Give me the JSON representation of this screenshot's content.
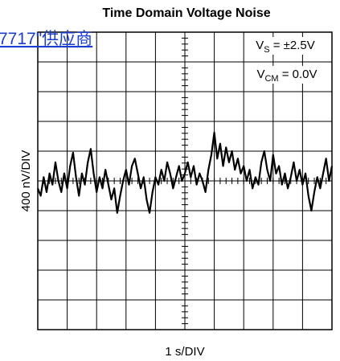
{
  "chart_data": {
    "type": "line",
    "title": "Time Domain Voltage Noise",
    "xlabel": "1 s/DIV",
    "ylabel": "400 nV/DIV",
    "annotations": [
      {
        "base": "V",
        "sub": "S",
        "rest": " = ±2.5V"
      },
      {
        "base": "V",
        "sub": "CM",
        "rest": " = 0.0V"
      }
    ],
    "overlay_link": "7717\"供应商",
    "color": "#000000",
    "grid": true,
    "xlim": [
      0,
      10
    ],
    "xticks": [
      0,
      1,
      2,
      3,
      4,
      5,
      6,
      7,
      8,
      9,
      10
    ],
    "ylim": [
      -2000,
      2000
    ],
    "yticks": [
      -2000,
      -1600,
      -1200,
      -800,
      -400,
      0,
      400,
      800,
      1200,
      1600,
      2000
    ],
    "x": [
      0,
      0.1,
      0.2,
      0.3,
      0.4,
      0.5,
      0.6,
      0.7,
      0.8,
      0.9,
      1,
      1.1,
      1.2,
      1.3,
      1.4,
      1.5,
      1.6,
      1.7,
      1.8,
      1.9,
      2,
      2.1,
      2.2,
      2.3,
      2.4,
      2.5,
      2.6,
      2.7,
      2.8,
      2.9,
      3,
      3.1,
      3.2,
      3.3,
      3.4,
      3.5,
      3.6,
      3.7,
      3.8,
      3.9,
      4,
      4.1,
      4.2,
      4.3,
      4.4,
      4.5,
      4.6,
      4.7,
      4.8,
      4.9,
      5,
      5.1,
      5.2,
      5.3,
      5.4,
      5.5,
      5.6,
      5.7,
      5.8,
      5.9,
      6,
      6.1,
      6.2,
      6.3,
      6.4,
      6.5,
      6.6,
      6.7,
      6.8,
      6.9,
      7,
      7.1,
      7.2,
      7.3,
      7.4,
      7.5,
      7.6,
      7.7,
      7.8,
      7.9,
      8,
      8.1,
      8.2,
      8.3,
      8.4,
      8.5,
      8.6,
      8.7,
      8.8,
      8.9,
      9,
      9.1,
      9.2,
      9.3,
      9.4,
      9.5,
      9.6,
      9.7,
      9.8,
      9.9,
      10
    ],
    "values": [
      -100,
      -200,
      50,
      -150,
      100,
      -50,
      250,
      0,
      -150,
      100,
      -100,
      200,
      380,
      50,
      -200,
      100,
      -50,
      250,
      430,
      100,
      -150,
      50,
      -100,
      150,
      -50,
      -250,
      -100,
      -430,
      -200,
      0,
      150,
      -50,
      200,
      300,
      100,
      -100,
      50,
      -250,
      -430,
      -150,
      50,
      -50,
      150,
      0,
      250,
      100,
      -100,
      50,
      200,
      0,
      100,
      250,
      50,
      200,
      -50,
      100,
      0,
      -150,
      150,
      350,
      650,
      300,
      500,
      200,
      450,
      250,
      400,
      150,
      300,
      100,
      200,
      0,
      150,
      -100,
      50,
      -50,
      250,
      400,
      150,
      0,
      350,
      100,
      200,
      -50,
      100,
      -100,
      50,
      250,
      0,
      150,
      -50,
      100,
      -200,
      -400,
      -150,
      50,
      -100,
      100,
      300,
      0,
      200
    ]
  }
}
